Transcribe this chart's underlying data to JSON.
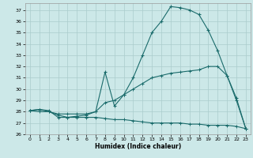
{
  "title": "",
  "xlabel": "Humidex (Indice chaleur)",
  "bg_color": "#cce8e8",
  "grid_color": "#aacccc",
  "line_color": "#1a6b6b",
  "xlim": [
    -0.5,
    23.5
  ],
  "ylim": [
    26,
    37.6
  ],
  "yticks": [
    26,
    27,
    28,
    29,
    30,
    31,
    32,
    33,
    34,
    35,
    36,
    37
  ],
  "xticks": [
    0,
    1,
    2,
    3,
    4,
    5,
    6,
    7,
    8,
    9,
    10,
    11,
    12,
    13,
    14,
    15,
    16,
    17,
    18,
    19,
    20,
    21,
    22,
    23
  ],
  "line1_x": [
    0,
    1,
    2,
    3,
    4,
    5,
    6,
    7,
    8,
    9,
    10,
    11,
    12,
    13,
    14,
    15,
    16,
    17,
    18,
    19,
    20,
    21,
    22,
    23
  ],
  "line1_y": [
    28.1,
    28.2,
    28.1,
    27.5,
    27.5,
    27.6,
    27.7,
    28.0,
    31.5,
    28.5,
    29.5,
    31.0,
    33.0,
    35.0,
    36.0,
    37.3,
    37.2,
    37.0,
    36.6,
    35.2,
    33.4,
    31.2,
    29.2,
    26.5
  ],
  "line2_x": [
    0,
    1,
    2,
    3,
    4,
    5,
    6,
    7,
    8,
    9,
    10,
    11,
    12,
    13,
    14,
    15,
    16,
    17,
    18,
    19,
    20,
    21,
    22,
    23
  ],
  "line2_y": [
    28.1,
    28.2,
    28.0,
    27.8,
    27.8,
    27.8,
    27.8,
    28.0,
    28.8,
    29.0,
    29.5,
    30.0,
    30.5,
    31.0,
    31.2,
    31.4,
    31.5,
    31.6,
    31.7,
    32.0,
    32.0,
    31.2,
    29.0,
    26.5
  ],
  "line3_x": [
    0,
    1,
    2,
    3,
    4,
    5,
    6,
    7,
    8,
    9,
    10,
    11,
    12,
    13,
    14,
    15,
    16,
    17,
    18,
    19,
    20,
    21,
    22,
    23
  ],
  "line3_y": [
    28.1,
    28.0,
    28.0,
    27.7,
    27.5,
    27.5,
    27.5,
    27.5,
    27.4,
    27.3,
    27.3,
    27.2,
    27.1,
    27.0,
    27.0,
    27.0,
    27.0,
    26.9,
    26.9,
    26.8,
    26.8,
    26.8,
    26.7,
    26.5
  ]
}
